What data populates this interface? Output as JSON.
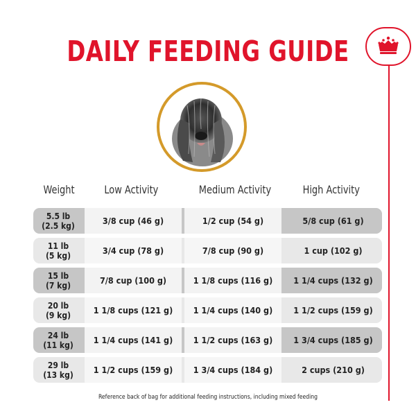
{
  "title": "DAILY FEEDING GUIDE",
  "brand": {
    "emblem_icon": "crown-icon",
    "accent_color": "#e0142b",
    "ring_color": "#d49a2a"
  },
  "columns": [
    "Weight",
    "Low Activity",
    "Medium Activity",
    "High Activity"
  ],
  "rows": [
    {
      "weight_lb": "5.5 lb",
      "weight_kg": "(2.5 kg)",
      "low": "3/8 cup (46 g)",
      "medium": "1/2 cup (54 g)",
      "high": "5/8 cup (61 g)"
    },
    {
      "weight_lb": "11 lb",
      "weight_kg": "(5 kg)",
      "low": "3/4 cup (78 g)",
      "medium": "7/8 cup (90 g)",
      "high": "1 cup (102 g)"
    },
    {
      "weight_lb": "15 lb",
      "weight_kg": "(7 kg)",
      "low": "7/8 cup (100 g)",
      "medium": "1 1/8 cups (116 g)",
      "high": "1 1/4 cups (132 g)"
    },
    {
      "weight_lb": "20 lb",
      "weight_kg": "(9 kg)",
      "low": "1 1/8 cups (121 g)",
      "medium": "1 1/4 cups (140 g)",
      "high": "1 1/2 cups (159 g)"
    },
    {
      "weight_lb": "24 lb",
      "weight_kg": "(11 kg)",
      "low": "1 1/4 cups (141 g)",
      "medium": "1 1/2 cups (163 g)",
      "high": "1 3/4 cups (185 g)"
    },
    {
      "weight_lb": "29 lb",
      "weight_kg": "(13 kg)",
      "low": "1 1/2 cups (159 g)",
      "medium": "1 3/4 cups (184 g)",
      "high": "2 cups (210 g)"
    }
  ],
  "footnote": "Reference back of bag for additional feeding instructions, including mixed feeding"
}
